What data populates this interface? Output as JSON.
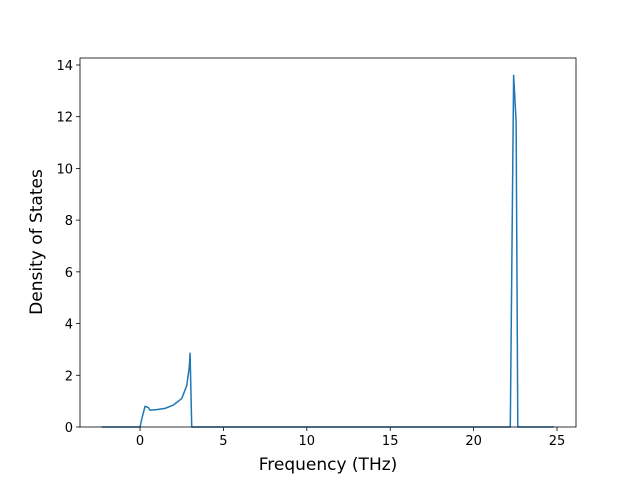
{
  "chart_data": {
    "type": "line",
    "xlabel": "Frequency (THz)",
    "ylabel": "Density of States",
    "x": [
      -2.3,
      0,
      0.1,
      0.3,
      0.5,
      0.6,
      1.0,
      1.5,
      2.0,
      2.5,
      2.8,
      2.95,
      3.0,
      3.1,
      22.2,
      22.4,
      22.55,
      22.65,
      24.8
    ],
    "series": [
      {
        "color": "#1f77b4",
        "values": [
          0,
          0,
          0.3,
          0.8,
          0.75,
          0.65,
          0.67,
          0.72,
          0.85,
          1.1,
          1.6,
          2.3,
          2.85,
          0,
          0,
          13.6,
          11.8,
          0,
          0
        ]
      }
    ],
    "xlim": [
      -3.6,
      26.14
    ],
    "xticks": [
      0,
      5,
      10,
      15,
      20,
      25
    ],
    "ylim": [
      0,
      14.27
    ],
    "yticks": [
      0,
      2,
      4,
      6,
      8,
      10,
      12,
      14
    ]
  }
}
